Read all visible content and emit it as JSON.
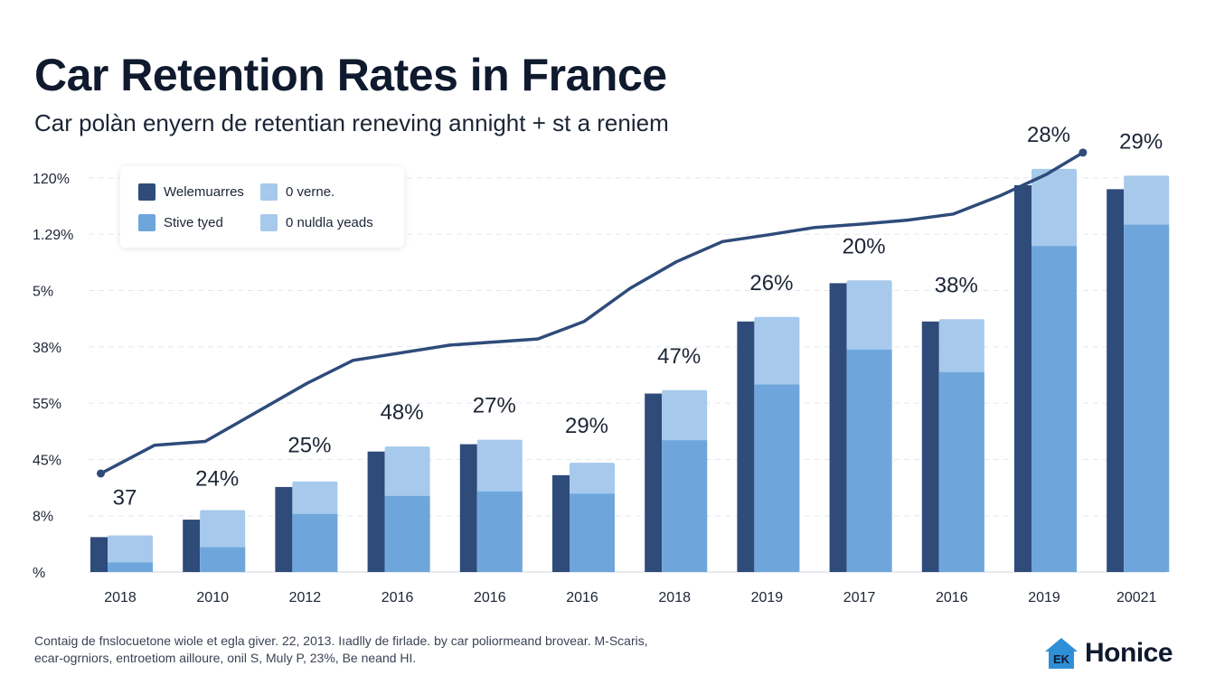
{
  "header": {
    "title": "Car Retention Rates in France",
    "subtitle": "Car polàn enyern de retentian reneving annight + st a reniem"
  },
  "legend": {
    "items": [
      {
        "label": "Welemuarres",
        "color": "#2e4b7a"
      },
      {
        "label": "0 verne.",
        "color": "#a6c9ec"
      },
      {
        "label": "Stive tyed",
        "color": "#6ea6dc"
      },
      {
        "label": "0 nuldla yeads",
        "color": "#a6c9ec"
      }
    ]
  },
  "footer": {
    "line1": "Contaig de fnslocuetone wiole et egla giver. 22, 2013. Iıadlly de firlade. by car poliormeand brovear. M-Scaris,",
    "line2": "ecar-ogrniors, entroetiom ailloure, onil S, Muly P, 23%, Be neand HI."
  },
  "brand": {
    "logo_text": "EK",
    "name": "Honice",
    "icon": "house-logo-icon"
  },
  "chart_data": {
    "type": "bar",
    "title": "Car Retention Rates in France",
    "subtitle": "Car polàn enyern de retentian reneving annight + st a reniem",
    "y_tick_labels": [
      "120%",
      "1.29%",
      "5%",
      "38%",
      "55%",
      "45%",
      "8%",
      "%"
    ],
    "categories": [
      "2018",
      "2010",
      "2012",
      "2016",
      "2016",
      "2016",
      "2018",
      "2019",
      "2017",
      "2016",
      "2019",
      "20021"
    ],
    "data_labels": [
      "37",
      "24%",
      "25%",
      "48%",
      "27%",
      "29%",
      "47%",
      "26%",
      "20%",
      "38%",
      "28%",
      "29%"
    ],
    "ylim": [
      0,
      7
    ],
    "series": [
      {
        "name": "Welemuarres",
        "color": "#2e4b7a",
        "values": [
          0.62,
          0.93,
          1.51,
          2.14,
          2.27,
          1.72,
          3.17,
          4.45,
          5.13,
          4.45,
          6.87,
          6.8
        ]
      },
      {
        "name": "Stive tyed",
        "color": "#6ea6dc",
        "values": [
          0.17,
          0.44,
          1.03,
          1.35,
          1.43,
          1.39,
          2.34,
          3.33,
          3.95,
          3.55,
          5.79,
          6.17
        ]
      },
      {
        "name": "0 verne.",
        "color": "#a6c9ec",
        "values": [
          0.65,
          1.1,
          1.61,
          2.23,
          2.35,
          1.94,
          3.23,
          4.53,
          5.18,
          4.49,
          7.16,
          7.04
        ]
      }
    ],
    "trend_line": {
      "color": "#2e4b7a",
      "points": [
        [
          0.27,
          1.75
        ],
        [
          0.85,
          2.25
        ],
        [
          1.4,
          2.32
        ],
        [
          2.5,
          3.35
        ],
        [
          3.0,
          3.76
        ],
        [
          4.05,
          4.03
        ],
        [
          5.0,
          4.14
        ],
        [
          5.5,
          4.45
        ],
        [
          6.0,
          5.04
        ],
        [
          6.5,
          5.51
        ],
        [
          7.0,
          5.87
        ],
        [
          7.5,
          5.99
        ],
        [
          8.0,
          6.12
        ],
        [
          8.5,
          6.18
        ],
        [
          9.0,
          6.25
        ],
        [
          9.5,
          6.36
        ],
        [
          10.0,
          6.68
        ],
        [
          10.5,
          7.06
        ],
        [
          10.9,
          7.45
        ]
      ]
    },
    "grid": true,
    "legend": "top-left"
  }
}
